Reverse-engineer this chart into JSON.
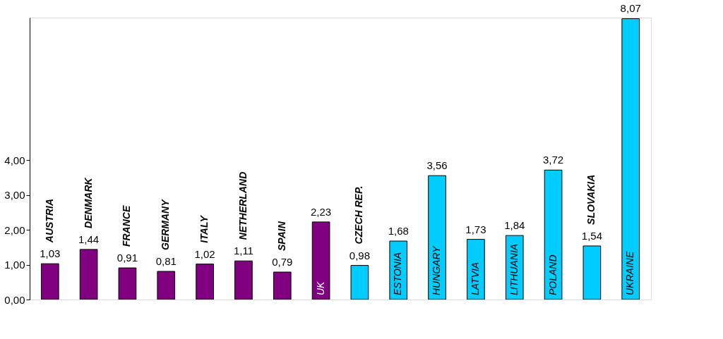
{
  "chart_data": {
    "type": "bar",
    "categories": [
      "AUSTRIA",
      "DENMARK",
      "FRANCE",
      "GERMANY",
      "ITALY",
      "NETHERLAND",
      "SPAIN",
      "UK",
      "CZECH REP.",
      "ESTONIA",
      "HUNGARY",
      "LATVIA",
      "LITHUANIA",
      "POLAND",
      "SLOVAKIA",
      "UKRAINE"
    ],
    "values": [
      1.03,
      1.44,
      0.91,
      0.81,
      1.02,
      1.11,
      0.79,
      2.23,
      0.98,
      1.68,
      3.56,
      1.73,
      1.84,
      3.72,
      1.54,
      8.07
    ],
    "value_labels": [
      "1,03",
      "1,44",
      "0,91",
      "0,81",
      "1,02",
      "1,11",
      "0,79",
      "2,23",
      "0,98",
      "1,68",
      "3,56",
      "1,73",
      "1,84",
      "3,72",
      "1,54",
      "8,07"
    ],
    "colors": [
      "#800080",
      "#800080",
      "#800080",
      "#800080",
      "#800080",
      "#800080",
      "#800080",
      "#800080",
      "#00ccff",
      "#00ccff",
      "#00ccff",
      "#00ccff",
      "#00ccff",
      "#00ccff",
      "#00ccff",
      "#00ccff"
    ],
    "ylim": [
      0,
      8.1
    ],
    "yticks": [
      {
        "value": 0,
        "label": "0,00"
      },
      {
        "value": 1,
        "label": "1,00"
      },
      {
        "value": 2,
        "label": "2,00"
      },
      {
        "value": 3,
        "label": "3,00"
      },
      {
        "value": 4,
        "label": "4,00"
      }
    ],
    "grid": false
  }
}
